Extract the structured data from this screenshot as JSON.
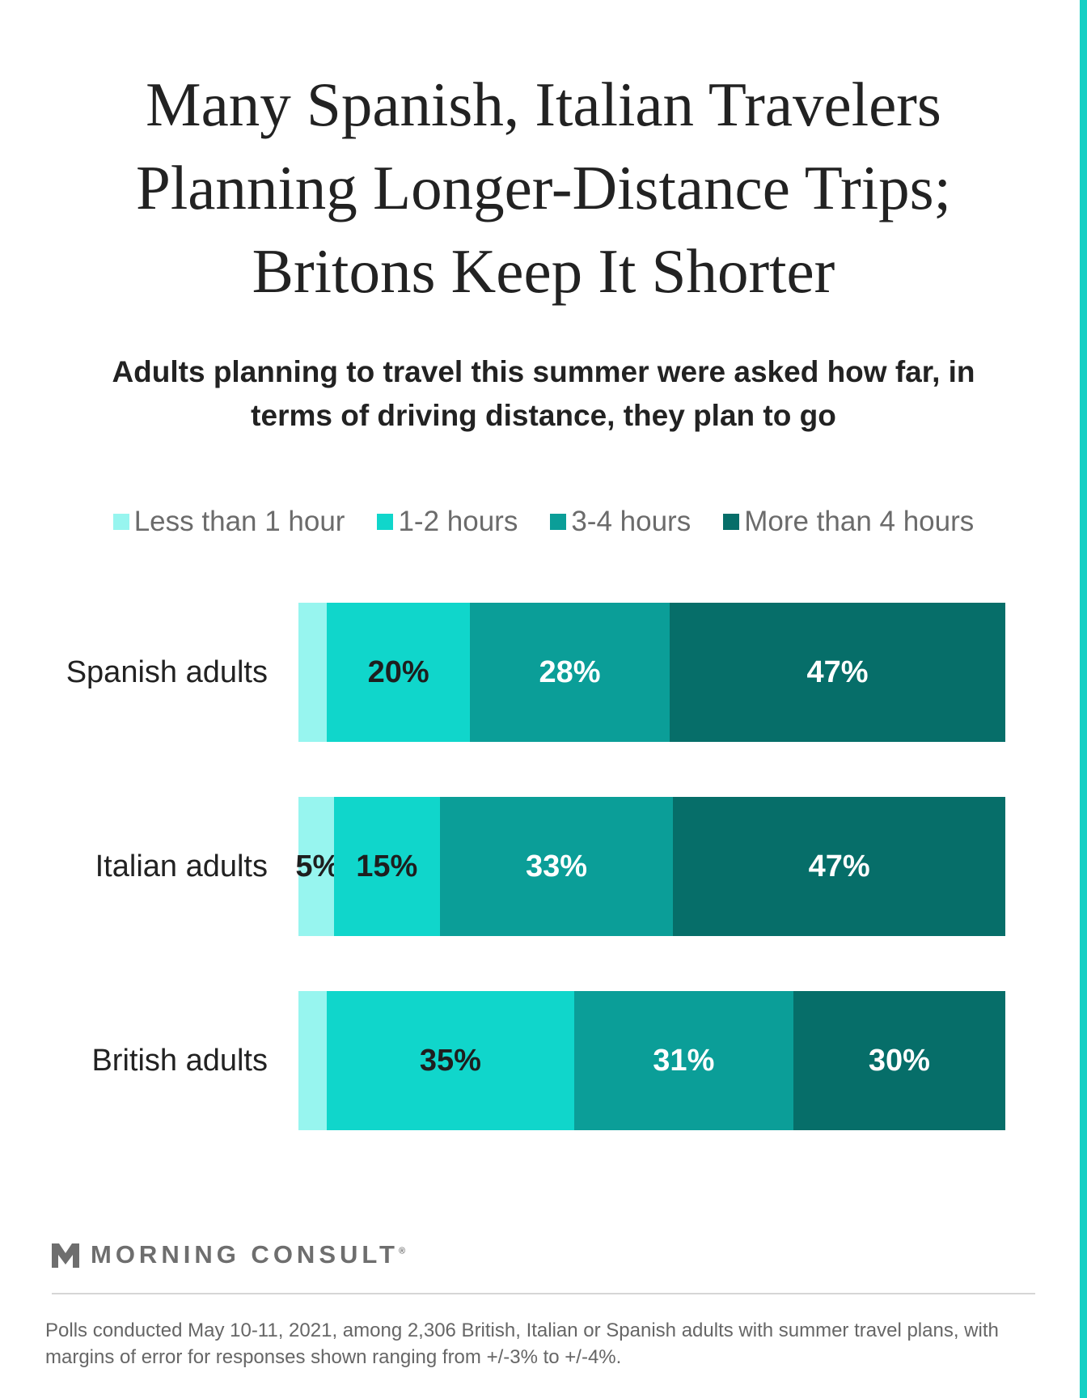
{
  "title": "Many Spanish, Italian Travelers Planning Longer-Distance Trips; Britons Keep It Shorter",
  "subtitle": "Adults planning to travel this summer were asked how far, in terms of driving distance, they plan to go",
  "footnote": "Polls conducted May 10-11, 2021, among 2,306 British, Italian or Spanish adults with summer travel plans, with margins of error for responses shown ranging from +/-3% to +/-4%.",
  "brand": {
    "name": "MORNING CONSULT",
    "mark": "®",
    "logo_icon": "morning-consult-m-icon"
  },
  "accent_color": "#16cfc4",
  "chart_data": {
    "type": "bar",
    "orientation": "horizontal",
    "stacked": true,
    "categories": [
      "Spanish adults",
      "Italian adults",
      "British adults"
    ],
    "series": [
      {
        "name": "Less than 1 hour",
        "color": "#97f5ef",
        "values": [
          4,
          5,
          4
        ],
        "labels": [
          "",
          "5%",
          ""
        ]
      },
      {
        "name": "1-2 hours",
        "color": "#10d6cb",
        "values": [
          20,
          15,
          35
        ],
        "labels": [
          "20%",
          "15%",
          "35%"
        ]
      },
      {
        "name": "3-4 hours",
        "color": "#0b9e98",
        "values": [
          28,
          33,
          31
        ],
        "labels": [
          "28%",
          "33%",
          "31%"
        ]
      },
      {
        "name": "More than 4 hours",
        "color": "#066e69",
        "values": [
          47,
          47,
          30
        ],
        "labels": [
          "47%",
          "47%",
          "30%"
        ]
      }
    ],
    "label_colors": [
      "#1e1e1e",
      "#1e1e1e",
      "#ffffff",
      "#ffffff"
    ],
    "legend_position": "top",
    "grid": false
  }
}
